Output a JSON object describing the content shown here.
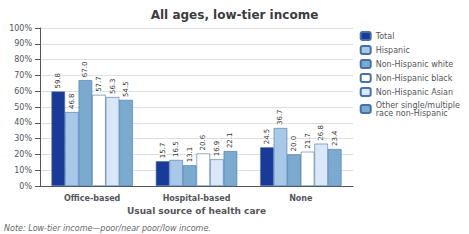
{
  "chart_data": {
    "type": "bar",
    "title": "All ages, low-tier income",
    "xlabel": "Usual source of health care",
    "annotations": [
      "Note: Low-tier income—poor/near poor/low income."
    ],
    "categories": [
      "Office-based",
      "Hospital-based",
      "None"
    ],
    "series": [
      {
        "name": "Total",
        "color": "#1a3a99",
        "values": [
          59.8,
          15.7,
          24.5
        ],
        "value_labels": [
          "59.8",
          "15.7",
          "24.5"
        ]
      },
      {
        "name": "Hispanic",
        "color": "#a8c8e8",
        "values": [
          46.8,
          16.5,
          36.7
        ],
        "value_labels": [
          "46.8",
          "16.5",
          "36.7"
        ]
      },
      {
        "name": "Non-Hispanic white",
        "color": "#7aaad0",
        "values": [
          67.0,
          13.1,
          20.0
        ],
        "value_labels": [
          "67.0",
          "13.1",
          "20.0"
        ]
      },
      {
        "name": "Non-Hispanic black",
        "color": "#ffffff",
        "values": [
          57.7,
          20.6,
          21.7
        ],
        "value_labels": [
          "57.7",
          "20.6",
          "21.7"
        ]
      },
      {
        "name": "Non-Hispanic Asian",
        "color": "#d8e8f8",
        "values": [
          56.3,
          16.9,
          26.8
        ],
        "value_labels": [
          "56.3",
          "16.9",
          "26.8"
        ]
      },
      {
        "name": "Other single/multiple\nrace non-Hispanic",
        "color": "#7aaad0",
        "values": [
          54.5,
          22.1,
          23.4
        ],
        "value_labels": [
          "54.5",
          "22.1",
          "23.4"
        ]
      }
    ],
    "ylim": [
      0,
      100
    ],
    "yticks": [
      {
        "value": 0,
        "label": "0%"
      },
      {
        "value": 10,
        "label": "10%"
      },
      {
        "value": 20,
        "label": "20%"
      },
      {
        "value": 30,
        "label": "30%"
      },
      {
        "value": 40,
        "label": "40%"
      },
      {
        "value": 50,
        "label": "50%"
      },
      {
        "value": 60,
        "label": "60%"
      },
      {
        "value": 70,
        "label": "70%"
      },
      {
        "value": 80,
        "label": "80%"
      },
      {
        "value": 90,
        "label": "90%"
      },
      {
        "value": 100,
        "label": "100%"
      }
    ],
    "grid": true,
    "legend": "upper right",
    "data_labels": true
  }
}
